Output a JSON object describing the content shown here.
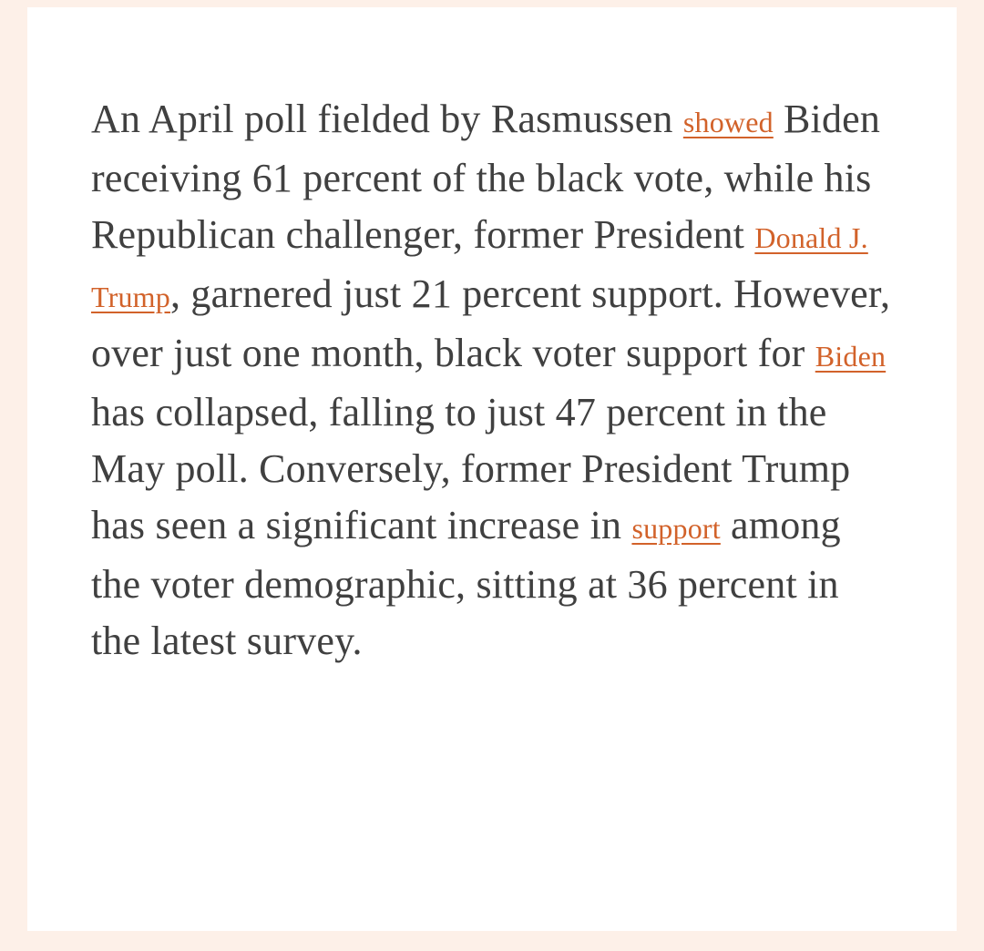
{
  "theme": {
    "background": "#fdf0e8",
    "surface": "#ffffff",
    "text_color": "#404040",
    "link_color": "#d2622a"
  },
  "article": {
    "segments": [
      {
        "type": "text",
        "text": "An April poll fielded by Rasmussen "
      },
      {
        "type": "link",
        "text": "showed"
      },
      {
        "type": "text",
        "text": " Biden receiving 61 percent of the black vote, while his Republican challenger, former President "
      },
      {
        "type": "link",
        "text": "Donald J. Trump"
      },
      {
        "type": "text",
        "text": ", garnered just 21 percent support. However, over just one month, black voter support for "
      },
      {
        "type": "link",
        "text": "Biden"
      },
      {
        "type": "text",
        "text": " has collapsed, falling to just 47 percent in the May poll. Conversely, former President Trump has seen a significant increase in "
      },
      {
        "type": "link",
        "text": "support"
      },
      {
        "type": "text",
        "text": " among the voter demographic, sitting at 36 percent in the latest survey."
      }
    ]
  }
}
